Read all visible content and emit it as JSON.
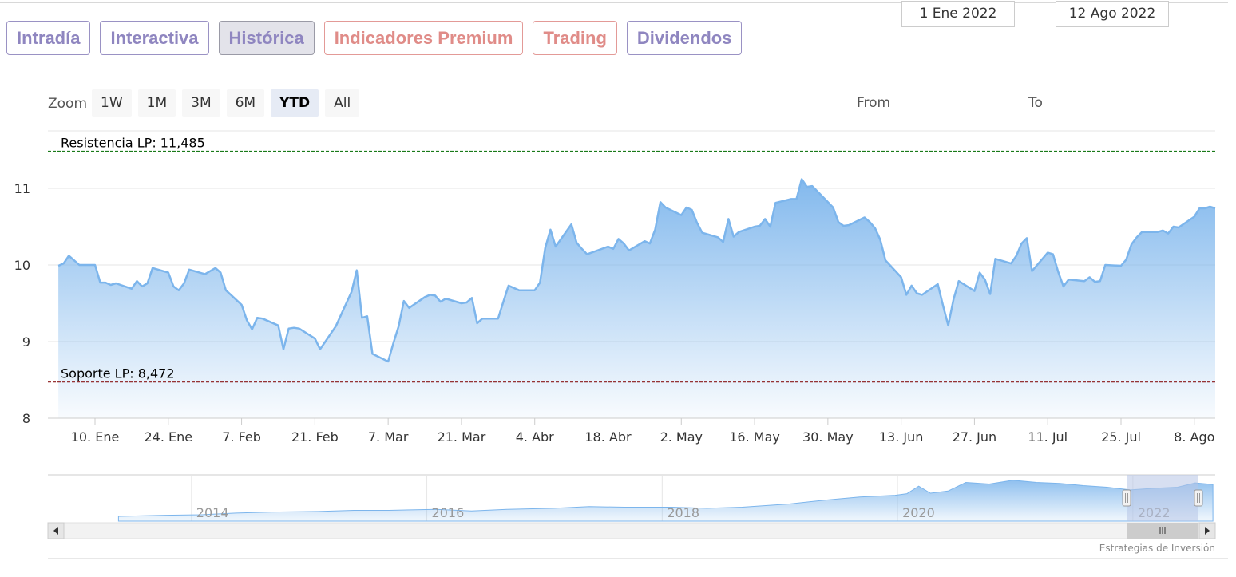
{
  "tabs": [
    {
      "label": "Intradía",
      "style": "violet",
      "active": false
    },
    {
      "label": "Interactiva",
      "style": "violet",
      "active": false
    },
    {
      "label": "Histórica",
      "style": "violet",
      "active": true
    },
    {
      "label": "Indicadores Premium",
      "style": "coral",
      "active": false
    },
    {
      "label": "Trading",
      "style": "coral",
      "active": false
    },
    {
      "label": "Dividendos",
      "style": "violet",
      "active": false
    }
  ],
  "zoom": {
    "label": "Zoom",
    "buttons": [
      "1W",
      "1M",
      "3M",
      "6M",
      "YTD",
      "All"
    ],
    "active": "YTD"
  },
  "range": {
    "from_label": "From",
    "from_value": "1 Ene 2022",
    "to_label": "To",
    "to_value": "12 Ago 2022"
  },
  "credit": "Estrategias de Inversión",
  "colors": {
    "series": "#7cb5ec",
    "resistance": "#1a7a1a",
    "support": "#8b1a1a",
    "navigator_mask": "#c9d3ea"
  },
  "chart_data": {
    "type": "area",
    "title": "",
    "xlabel": "",
    "ylabel": "",
    "ylim": [
      8,
      11.75
    ],
    "yticks": [
      8,
      9,
      10,
      11
    ],
    "xlim": [
      "2022-01-01",
      "2022-08-12"
    ],
    "xticks": [
      {
        "date": "2022-01-10",
        "label": "10. Ene"
      },
      {
        "date": "2022-01-24",
        "label": "24. Ene"
      },
      {
        "date": "2022-02-07",
        "label": "7. Feb"
      },
      {
        "date": "2022-02-21",
        "label": "21. Feb"
      },
      {
        "date": "2022-03-07",
        "label": "7. Mar"
      },
      {
        "date": "2022-03-21",
        "label": "21. Mar"
      },
      {
        "date": "2022-04-04",
        "label": "4. Abr"
      },
      {
        "date": "2022-04-18",
        "label": "18. Abr"
      },
      {
        "date": "2022-05-02",
        "label": "2. May"
      },
      {
        "date": "2022-05-16",
        "label": "16. May"
      },
      {
        "date": "2022-05-30",
        "label": "30. May"
      },
      {
        "date": "2022-06-13",
        "label": "13. Jun"
      },
      {
        "date": "2022-06-27",
        "label": "27. Jun"
      },
      {
        "date": "2022-07-11",
        "label": "11. Jul"
      },
      {
        "date": "2022-07-25",
        "label": "25. Jul"
      },
      {
        "date": "2022-08-08",
        "label": "8. Ago"
      }
    ],
    "plot_lines": [
      {
        "label": "Resistencia LP: 11,485",
        "value": 11.485,
        "style": "dashed",
        "color": "#1a7a1a"
      },
      {
        "label": "Soporte LP: 8,472",
        "value": 8.472,
        "style": "dashed",
        "color": "#8b1a1a"
      }
    ],
    "series": [
      {
        "x": [
          "2022-01-03",
          "2022-01-04",
          "2022-01-05",
          "2022-01-06",
          "2022-01-07",
          "2022-01-10",
          "2022-01-11",
          "2022-01-12",
          "2022-01-13",
          "2022-01-14",
          "2022-01-17",
          "2022-01-18",
          "2022-01-19",
          "2022-01-20",
          "2022-01-21",
          "2022-01-24",
          "2022-01-25",
          "2022-01-26",
          "2022-01-27",
          "2022-01-28",
          "2022-01-31",
          "2022-02-01",
          "2022-02-02",
          "2022-02-03",
          "2022-02-04",
          "2022-02-07",
          "2022-02-08",
          "2022-02-09",
          "2022-02-10",
          "2022-02-11",
          "2022-02-14",
          "2022-02-15",
          "2022-02-16",
          "2022-02-17",
          "2022-02-18",
          "2022-02-21",
          "2022-02-22",
          "2022-02-23",
          "2022-02-24",
          "2022-02-25",
          "2022-02-28",
          "2022-03-01",
          "2022-03-02",
          "2022-03-03",
          "2022-03-04",
          "2022-03-07",
          "2022-03-08",
          "2022-03-09",
          "2022-03-10",
          "2022-03-11",
          "2022-03-14",
          "2022-03-15",
          "2022-03-16",
          "2022-03-17",
          "2022-03-18",
          "2022-03-21",
          "2022-03-22",
          "2022-03-23",
          "2022-03-24",
          "2022-03-25",
          "2022-03-28",
          "2022-03-29",
          "2022-03-30",
          "2022-03-31",
          "2022-04-01",
          "2022-04-04",
          "2022-04-05",
          "2022-04-06",
          "2022-04-07",
          "2022-04-08",
          "2022-04-11",
          "2022-04-12",
          "2022-04-13",
          "2022-04-14",
          "2022-04-18",
          "2022-04-19",
          "2022-04-20",
          "2022-04-21",
          "2022-04-22",
          "2022-04-25",
          "2022-04-26",
          "2022-04-27",
          "2022-04-28",
          "2022-04-29",
          "2022-05-02",
          "2022-05-03",
          "2022-05-04",
          "2022-05-05",
          "2022-05-06",
          "2022-05-09",
          "2022-05-10",
          "2022-05-11",
          "2022-05-12",
          "2022-05-13",
          "2022-05-16",
          "2022-05-17",
          "2022-05-18",
          "2022-05-19",
          "2022-05-20",
          "2022-05-23",
          "2022-05-24",
          "2022-05-25",
          "2022-05-26",
          "2022-05-27",
          "2022-05-30",
          "2022-05-31",
          "2022-06-01",
          "2022-06-02",
          "2022-06-03",
          "2022-06-06",
          "2022-06-07",
          "2022-06-08",
          "2022-06-09",
          "2022-06-10",
          "2022-06-13",
          "2022-06-14",
          "2022-06-15",
          "2022-06-16",
          "2022-06-17",
          "2022-06-20",
          "2022-06-21",
          "2022-06-22",
          "2022-06-23",
          "2022-06-24",
          "2022-06-27",
          "2022-06-28",
          "2022-06-29",
          "2022-06-30",
          "2022-07-01",
          "2022-07-04",
          "2022-07-05",
          "2022-07-06",
          "2022-07-07",
          "2022-07-08",
          "2022-07-11",
          "2022-07-12",
          "2022-07-13",
          "2022-07-14",
          "2022-07-15",
          "2022-07-18",
          "2022-07-19",
          "2022-07-20",
          "2022-07-21",
          "2022-07-22",
          "2022-07-25",
          "2022-07-26",
          "2022-07-27",
          "2022-07-28",
          "2022-07-29",
          "2022-08-01",
          "2022-08-02",
          "2022-08-03",
          "2022-08-04",
          "2022-08-05",
          "2022-08-08",
          "2022-08-09",
          "2022-08-10",
          "2022-08-11",
          "2022-08-12"
        ],
        "y": [
          9.99,
          10.02,
          10.12,
          10.06,
          10.0,
          10.0,
          9.77,
          9.77,
          9.74,
          9.76,
          9.69,
          9.79,
          9.72,
          9.76,
          9.96,
          9.9,
          9.72,
          9.67,
          9.76,
          9.94,
          9.88,
          9.92,
          9.96,
          9.9,
          9.67,
          9.48,
          9.28,
          9.16,
          9.31,
          9.3,
          9.21,
          8.9,
          9.17,
          9.18,
          9.17,
          9.04,
          8.9,
          9.0,
          9.1,
          9.2,
          9.65,
          9.93,
          9.31,
          9.33,
          8.84,
          8.74,
          8.98,
          9.2,
          9.53,
          9.44,
          9.58,
          9.61,
          9.6,
          9.52,
          9.56,
          9.5,
          9.51,
          9.57,
          9.24,
          9.3,
          9.3,
          9.52,
          9.73,
          9.7,
          9.67,
          9.67,
          9.77,
          10.22,
          10.46,
          10.24,
          10.53,
          10.29,
          10.21,
          10.14,
          10.24,
          10.21,
          10.34,
          10.28,
          10.19,
          10.31,
          10.28,
          10.46,
          10.82,
          10.75,
          10.65,
          10.75,
          10.72,
          10.55,
          10.42,
          10.36,
          10.3,
          10.6,
          10.37,
          10.43,
          10.5,
          10.51,
          10.6,
          10.5,
          10.81,
          10.86,
          10.86,
          11.12,
          11.02,
          11.03,
          10.82,
          10.75,
          10.56,
          10.51,
          10.52,
          10.62,
          10.56,
          10.48,
          10.33,
          10.06,
          9.84,
          9.61,
          9.73,
          9.63,
          9.61,
          9.75,
          9.47,
          9.21,
          9.55,
          9.79,
          9.66,
          9.9,
          9.81,
          9.62,
          10.08,
          10.02,
          10.12,
          10.28,
          10.35,
          9.92,
          10.16,
          10.14,
          9.91,
          9.72,
          9.81,
          9.79,
          9.84,
          9.78,
          9.79,
          10.0,
          9.99,
          10.07,
          10.27,
          10.36,
          10.43,
          10.43,
          10.45,
          10.41,
          10.5,
          10.49,
          10.63,
          10.74,
          10.74,
          10.76,
          10.74
        ]
      }
    ],
    "navigator": {
      "type": "area",
      "x_labels": [
        "2014",
        "2016",
        "2018",
        "2020",
        "2022"
      ],
      "x": [
        2013.3,
        2013.7,
        2014.0,
        2014.3,
        2014.6,
        2015.0,
        2015.3,
        2015.6,
        2016.0,
        2016.3,
        2016.6,
        2017.0,
        2017.3,
        2017.6,
        2018.0,
        2018.3,
        2018.6,
        2019.0,
        2019.3,
        2019.6,
        2019.9,
        2020.0,
        2020.1,
        2020.2,
        2020.35,
        2020.5,
        2020.7,
        2020.9,
        2021.1,
        2021.3,
        2021.5,
        2021.7,
        2021.9,
        2022.1,
        2022.3,
        2022.45,
        2022.6
      ],
      "y": [
        0.3,
        0.5,
        0.6,
        0.9,
        1.1,
        1.2,
        1.4,
        1.4,
        1.6,
        1.3,
        1.6,
        1.8,
        2.1,
        2.0,
        2.0,
        1.8,
        2.0,
        2.6,
        3.3,
        3.9,
        4.2,
        4.5,
        5.9,
        4.6,
        5.0,
        6.6,
        6.3,
        7.0,
        6.6,
        6.4,
        6.0,
        5.7,
        5.2,
        5.5,
        5.7,
        6.5,
        6.2
      ]
    }
  }
}
